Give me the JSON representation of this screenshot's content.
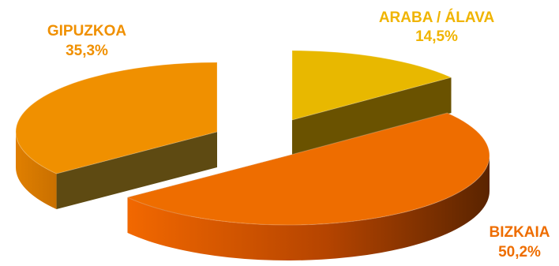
{
  "chart_data": {
    "type": "pie",
    "title": "",
    "style": "3d-exploded",
    "legend": "none",
    "slices": [
      {
        "label": "ARABA / ÁLAVA",
        "value": 14.5,
        "value_label": "14,5%",
        "color": "#e8b800"
      },
      {
        "label": "BIZKAIA",
        "value": 50.2,
        "value_label": "50,2%",
        "color": "#ee6d00"
      },
      {
        "label": "GIPUZKOA",
        "value": 35.3,
        "value_label": "35,3%",
        "color": "#f09000"
      }
    ]
  }
}
